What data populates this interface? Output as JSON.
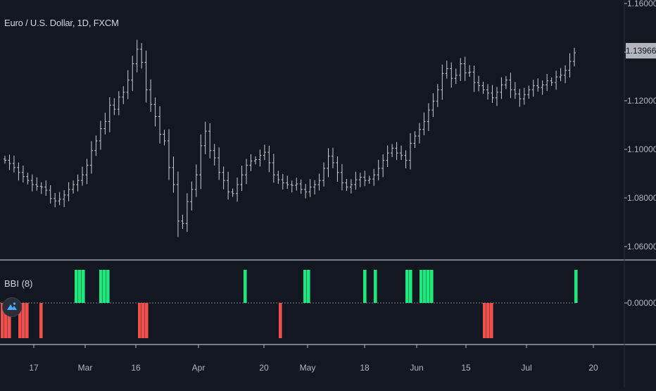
{
  "symbol_title": "Euro / U.S. Dollar, 1D, FXCM",
  "indicator_title": "BBI (8)",
  "last_price": "1.13966",
  "price_axis_labels": [
    "1.16000",
    "1.14000",
    "1.12000",
    "1.10000",
    "1.08000",
    "1.06000"
  ],
  "indicator_axis_label": "0.00000",
  "time_axis_labels": [
    "17",
    "Mar",
    "16",
    "Apr",
    "20",
    "May",
    "18",
    "Jun",
    "15",
    "Jul",
    "20"
  ],
  "colors": {
    "background": "#131722",
    "bar": "#c9ccd3",
    "positive": "#1ee87d",
    "negative": "#f0504c",
    "separator": "#787b86",
    "axis_text": "#b2b5be",
    "zero_line": "#787b86"
  },
  "icons": {
    "logo": "tradingview-logo-icon"
  },
  "chart_data": [
    {
      "type": "ohlc",
      "title": "Euro / U.S. Dollar, 1D, FXCM",
      "ylim": [
        1.06,
        1.16
      ],
      "x_tick_labels": [
        "17",
        "Mar",
        "16",
        "Apr",
        "20",
        "May",
        "18",
        "Jun",
        "15",
        "Jul",
        "20"
      ],
      "y_tick_labels": [
        "1.16000",
        "1.14000",
        "1.12000",
        "1.10000",
        "1.08000",
        "1.06000"
      ],
      "last_value": 1.13966,
      "close": [
        1.0955,
        1.0942,
        1.0925,
        1.0905,
        1.0888,
        1.0872,
        1.0855,
        1.0848,
        1.0845,
        1.0832,
        1.0798,
        1.0788,
        1.0795,
        1.0812,
        1.0835,
        1.0855,
        1.0872,
        1.0895,
        1.0935,
        1.0995,
        1.1035,
        1.1085,
        1.1115,
        1.1182,
        1.1165,
        1.1215,
        1.1235,
        1.1285,
        1.1352,
        1.1412,
        1.1358,
        1.1245,
        1.1185,
        1.1135,
        1.1062,
        1.1035,
        1.0925,
        1.0855,
        1.0705,
        1.0695,
        1.0785,
        1.0835,
        1.0895,
        1.1015,
        1.1075,
        1.0995,
        1.0965,
        1.0905,
        1.0872,
        1.0825,
        1.0818,
        1.0855,
        1.0895,
        1.0935,
        1.0952,
        1.0958,
        1.0975,
        1.0988,
        1.0945,
        1.0895,
        1.0875,
        1.0862,
        1.0855,
        1.0852,
        1.0858,
        1.0835,
        1.0825,
        1.0845,
        1.0855,
        1.0872,
        1.0922,
        1.0972,
        1.0945,
        1.0905,
        1.0862,
        1.0845,
        1.0855,
        1.0875,
        1.0885,
        1.0872,
        1.0878,
        1.0895,
        1.0922,
        1.0955,
        1.0985,
        1.1005,
        1.0985,
        1.0975,
        1.0955,
        1.1025,
        1.1055,
        1.1082,
        1.1115,
        1.1162,
        1.1198,
        1.1245,
        1.1312,
        1.1332,
        1.1292,
        1.1305,
        1.1352,
        1.1315,
        1.1318,
        1.1275,
        1.1262,
        1.1245,
        1.1232,
        1.1212,
        1.1235,
        1.1265,
        1.1285,
        1.1245,
        1.1228,
        1.1208,
        1.1225,
        1.1245,
        1.1262,
        1.1255,
        1.1265,
        1.1282,
        1.1275,
        1.1298,
        1.1305,
        1.1325,
        1.1362,
        1.1397
      ],
      "bar_spacing_note": "daily bars Feb–Jul"
    },
    {
      "type": "bar",
      "title": "BBI (8)",
      "y_tick_labels": [
        "0.00000"
      ],
      "bars": [
        {
          "pos": 0,
          "sign": -1
        },
        {
          "pos": 1,
          "sign": -1
        },
        {
          "pos": 2,
          "sign": -1
        },
        {
          "pos": 5,
          "sign": -1
        },
        {
          "pos": 6,
          "sign": -1
        },
        {
          "pos": 7,
          "sign": -1
        },
        {
          "pos": 11,
          "sign": -1
        },
        {
          "pos": 21,
          "sign": 1
        },
        {
          "pos": 22,
          "sign": 1
        },
        {
          "pos": 23,
          "sign": 1
        },
        {
          "pos": 28,
          "sign": 1
        },
        {
          "pos": 29,
          "sign": 1
        },
        {
          "pos": 30,
          "sign": 1
        },
        {
          "pos": 39,
          "sign": -1
        },
        {
          "pos": 40,
          "sign": -1
        },
        {
          "pos": 41,
          "sign": -1
        },
        {
          "pos": 69,
          "sign": 1
        },
        {
          "pos": 79,
          "sign": -1
        },
        {
          "pos": 86,
          "sign": 1
        },
        {
          "pos": 87,
          "sign": 1
        },
        {
          "pos": 103,
          "sign": 1
        },
        {
          "pos": 106,
          "sign": 1
        },
        {
          "pos": 115,
          "sign": 1
        },
        {
          "pos": 116,
          "sign": 1
        },
        {
          "pos": 119,
          "sign": 1
        },
        {
          "pos": 120,
          "sign": 1
        },
        {
          "pos": 121,
          "sign": 1
        },
        {
          "pos": 122,
          "sign": 1
        },
        {
          "pos": 137,
          "sign": -1
        },
        {
          "pos": 138,
          "sign": -1
        },
        {
          "pos": 139,
          "sign": -1
        },
        {
          "pos": 163,
          "sign": 1
        }
      ]
    }
  ]
}
